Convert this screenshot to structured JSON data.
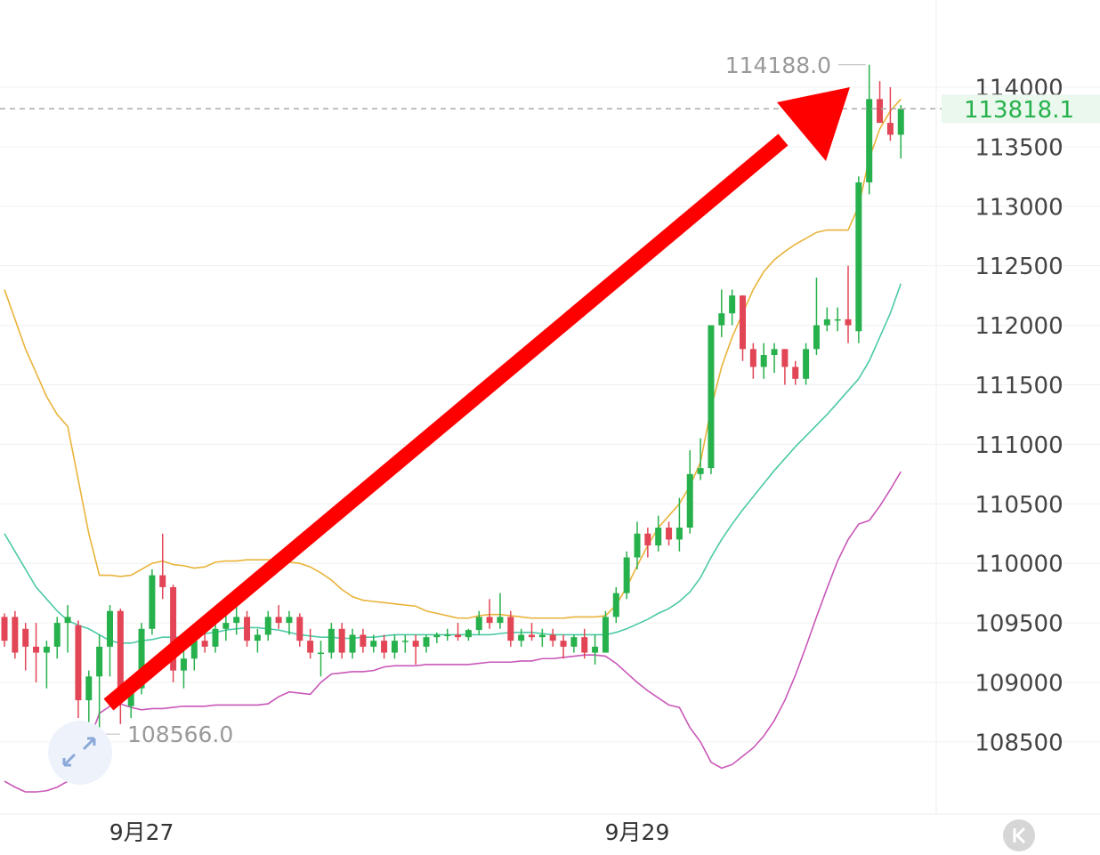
{
  "chart_data": {
    "type": "candlestick",
    "categories": [
      null,
      null,
      null,
      null,
      null,
      null,
      null,
      null,
      null,
      null,
      null,
      null,
      null,
      "9月27",
      null,
      null,
      null,
      null,
      null,
      null,
      null,
      null,
      null,
      null,
      null,
      null,
      null,
      null,
      null,
      null,
      null,
      null,
      null,
      null,
      null,
      null,
      null,
      null,
      null,
      null,
      null,
      null,
      null,
      null,
      null,
      null,
      null,
      null,
      null,
      null,
      null,
      null,
      null,
      null,
      null,
      null,
      null,
      null,
      null,
      null,
      "9月29",
      null,
      null,
      null,
      null,
      null,
      null,
      null,
      null,
      null,
      null,
      null,
      null,
      null,
      null,
      null,
      null,
      null,
      null,
      null,
      null,
      null,
      null,
      null,
      null,
      null
    ],
    "open": [
      109550,
      109550,
      109450,
      109300,
      109250,
      109300,
      109500,
      109480,
      108850,
      109050,
      109300,
      109600,
      108800,
      108950,
      109450,
      109900,
      109800,
      109100,
      109200,
      109350,
      109300,
      109450,
      109500,
      109550,
      109350,
      109400,
      109550,
      109500,
      109550,
      109350,
      109250,
      109250,
      109450,
      109250,
      109400,
      109300,
      109350,
      109250,
      109350,
      109350,
      109300,
      109380,
      109400,
      109400,
      109380,
      109440,
      109550,
      109500,
      109550,
      109350,
      109400,
      109380,
      109400,
      109350,
      109300,
      109380,
      109250,
      109250,
      109550,
      109750,
      110050,
      110250,
      110150,
      110300,
      110200,
      110300,
      110750,
      110800,
      112000,
      112100,
      112250,
      111800,
      111650,
      111750,
      111800,
      111650,
      111550,
      111800,
      112000,
      112050,
      112050,
      111950,
      113200,
      113900,
      113700,
      113600
    ],
    "high": [
      109580,
      109600,
      109500,
      109500,
      109350,
      109550,
      109650,
      109520,
      109100,
      109400,
      109650,
      109620,
      109000,
      109500,
      109950,
      110250,
      109820,
      109300,
      109400,
      109500,
      109550,
      109600,
      109650,
      109600,
      109450,
      109600,
      109650,
      109600,
      109580,
      109450,
      109350,
      109500,
      109500,
      109450,
      109450,
      109400,
      109400,
      109400,
      109400,
      109400,
      109400,
      109420,
      109450,
      109500,
      109450,
      109600,
      109700,
      109750,
      109600,
      109450,
      109500,
      109450,
      109450,
      109400,
      109400,
      109450,
      109400,
      109600,
      109800,
      110100,
      110350,
      110300,
      110400,
      110350,
      110550,
      110950,
      111050,
      112000,
      112300,
      112300,
      112250,
      111850,
      111850,
      111850,
      111800,
      111700,
      111850,
      112400,
      112150,
      112150,
      112500,
      113250,
      114188,
      114050,
      114000,
      113850
    ],
    "low": [
      109300,
      109200,
      109100,
      109000,
      108950,
      109200,
      109250,
      108700,
      108600,
      108566,
      109050,
      108650,
      108700,
      108900,
      109400,
      109700,
      109000,
      108950,
      109100,
      109250,
      109250,
      109350,
      109400,
      109300,
      109250,
      109350,
      109450,
      109400,
      109300,
      109200,
      109050,
      109200,
      109200,
      109200,
      109250,
      109250,
      109200,
      109200,
      109250,
      109150,
      109250,
      109330,
      109350,
      109350,
      109350,
      109400,
      109450,
      109450,
      109300,
      109300,
      109350,
      109300,
      109300,
      109200,
      109250,
      109200,
      109150,
      109250,
      109500,
      109700,
      109950,
      110050,
      110100,
      110150,
      110100,
      110250,
      110700,
      110750,
      111900,
      112000,
      111700,
      111550,
      111550,
      111600,
      111500,
      111500,
      111500,
      111750,
      111950,
      111950,
      111850,
      111850,
      113100,
      113700,
      113550,
      113400
    ],
    "close": [
      109350,
      109250,
      109300,
      109250,
      109300,
      109500,
      109550,
      108850,
      109050,
      109300,
      109600,
      108850,
      108950,
      109450,
      109900,
      109800,
      109100,
      109200,
      109350,
      109300,
      109450,
      109500,
      109550,
      109350,
      109400,
      109550,
      109500,
      109550,
      109350,
      109250,
      109250,
      109450,
      109250,
      109400,
      109300,
      109350,
      109250,
      109350,
      109350,
      109300,
      109380,
      109400,
      109400,
      109380,
      109440,
      109550,
      109500,
      109550,
      109350,
      109400,
      109380,
      109400,
      109350,
      109300,
      109380,
      109250,
      109300,
      109550,
      109750,
      110050,
      110250,
      110150,
      110300,
      110200,
      110300,
      110750,
      110800,
      112000,
      112100,
      112250,
      111800,
      111650,
      111750,
      111800,
      111650,
      111550,
      111800,
      112000,
      112050,
      112050,
      112000,
      113200,
      113900,
      113700,
      113600,
      113818.1
    ],
    "up_color": "#27b14c",
    "down_color": "#e24555",
    "series": [
      {
        "color": "#e9b33a",
        "values": [
          112300,
          112050,
          111800,
          111600,
          111400,
          111250,
          111150,
          110700,
          110250,
          109900,
          109900,
          109890,
          109900,
          109950,
          110000,
          110020,
          109990,
          109980,
          109960,
          109970,
          110010,
          110020,
          110020,
          110030,
          110030,
          110030,
          110020,
          110010,
          110000,
          109970,
          109920,
          109860,
          109780,
          109720,
          109690,
          109680,
          109670,
          109660,
          109650,
          109640,
          109600,
          109580,
          109560,
          109540,
          109540,
          109560,
          109570,
          109570,
          109560,
          109550,
          109540,
          109540,
          109540,
          109540,
          109550,
          109550,
          109550,
          109560,
          109650,
          109800,
          109980,
          110150,
          110300,
          110400,
          110500,
          110650,
          110850,
          111300,
          111650,
          111900,
          112100,
          112300,
          112450,
          112550,
          112620,
          112680,
          112730,
          112780,
          112800,
          112800,
          112800,
          113000,
          113400,
          113650,
          113800,
          113900
        ]
      },
      {
        "color": "#4cc9a6",
        "values": [
          110250,
          110100,
          109950,
          109800,
          109700,
          109600,
          109520,
          109480,
          109450,
          109400,
          109350,
          109330,
          109330,
          109350,
          109360,
          109380,
          109380,
          109380,
          109390,
          109410,
          109420,
          109440,
          109450,
          109460,
          109460,
          109450,
          109440,
          109420,
          109400,
          109390,
          109380,
          109380,
          109370,
          109370,
          109380,
          109380,
          109390,
          109400,
          109400,
          109400,
          109400,
          109400,
          109400,
          109400,
          109400,
          109400,
          109400,
          109410,
          109420,
          109420,
          109420,
          109410,
          109400,
          109400,
          109400,
          109400,
          109400,
          109400,
          109420,
          109450,
          109490,
          109530,
          109580,
          109620,
          109680,
          109760,
          109880,
          110050,
          110200,
          110330,
          110450,
          110560,
          110670,
          110780,
          110880,
          110980,
          111070,
          111160,
          111250,
          111350,
          111450,
          111550,
          111700,
          111900,
          112100,
          112350
        ]
      },
      {
        "color": "#c957b8",
        "values": [
          108170,
          108120,
          108080,
          108080,
          108090,
          108120,
          108170,
          108270,
          108500,
          108740,
          108800,
          108820,
          108790,
          108770,
          108780,
          108780,
          108790,
          108800,
          108800,
          108800,
          108810,
          108810,
          108810,
          108810,
          108810,
          108820,
          108880,
          108920,
          108910,
          108900,
          109000,
          109070,
          109080,
          109090,
          109090,
          109100,
          109130,
          109140,
          109140,
          109140,
          109150,
          109150,
          109150,
          109150,
          109150,
          109160,
          109170,
          109170,
          109170,
          109180,
          109180,
          109200,
          109200,
          109210,
          109220,
          109230,
          109230,
          109220,
          109160,
          109080,
          109000,
          108930,
          108870,
          108810,
          108790,
          108620,
          108500,
          108330,
          108280,
          108310,
          108380,
          108450,
          108550,
          108680,
          108850,
          109060,
          109300,
          109550,
          109790,
          110020,
          110200,
          110330,
          110360,
          110480,
          110620,
          110770
        ]
      }
    ],
    "ylim": [
      107894,
      114732
    ],
    "yticks": [
      108500,
      109000,
      109500,
      110000,
      110500,
      111000,
      111500,
      112000,
      112500,
      113000,
      113500,
      114000
    ],
    "grid": true,
    "last_price": 113818.1,
    "high_label": {
      "value": 114188,
      "label": "114188.0"
    },
    "low_label": {
      "value": 108566,
      "label": "108566.0"
    }
  }
}
